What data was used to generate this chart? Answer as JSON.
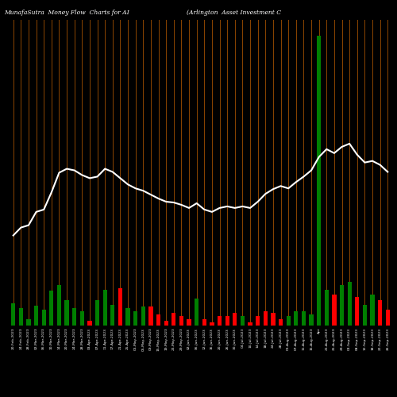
{
  "title_left": "MunafaSutra  Money Flow  Charts for AI",
  "title_right": "(Arlington  Asset Investment C",
  "background_color": "#000000",
  "grid_color": "#8B4500",
  "bar_colors": [
    "green",
    "green",
    "green",
    "green",
    "green",
    "green",
    "green",
    "green",
    "green",
    "green",
    "red",
    "green",
    "green",
    "green",
    "red",
    "green",
    "green",
    "green",
    "red",
    "red",
    "red",
    "red",
    "red",
    "red",
    "green",
    "red",
    "red",
    "red",
    "red",
    "red",
    "green",
    "red",
    "red",
    "red",
    "red",
    "red",
    "green",
    "green",
    "green",
    "green",
    "green",
    "green",
    "red",
    "green",
    "green",
    "red",
    "green",
    "green",
    "red",
    "red"
  ],
  "bar_heights": [
    28,
    22,
    8,
    25,
    20,
    45,
    52,
    32,
    22,
    18,
    6,
    32,
    46,
    26,
    48,
    22,
    18,
    24,
    24,
    14,
    6,
    16,
    12,
    8,
    34,
    8,
    4,
    12,
    12,
    16,
    12,
    4,
    12,
    18,
    16,
    8,
    12,
    18,
    18,
    14,
    370,
    46,
    40,
    52,
    56,
    36,
    26,
    40,
    32,
    20
  ],
  "line_values": [
    115,
    125,
    128,
    145,
    148,
    170,
    195,
    200,
    198,
    192,
    188,
    190,
    200,
    196,
    188,
    180,
    175,
    172,
    167,
    162,
    158,
    157,
    154,
    150,
    156,
    148,
    145,
    150,
    152,
    150,
    152,
    150,
    158,
    168,
    174,
    178,
    175,
    183,
    190,
    198,
    215,
    225,
    220,
    228,
    232,
    218,
    208,
    210,
    205,
    196
  ],
  "labels": [
    "20-Feb-2023",
    "24-Feb-2023",
    "28-Feb-2023",
    "02-Mar-2023",
    "06-Mar-2023",
    "10-Mar-2023",
    "14-Mar-2023",
    "20-Mar-2023",
    "24-Mar-2023",
    "28-Mar-2023",
    "03-Apr-2023",
    "07-Apr-2023",
    "11-Apr-2023",
    "17-Apr-2023",
    "21-Apr-2023",
    "25-Apr-2023",
    "01-May-2023",
    "05-May-2023",
    "09-May-2023",
    "15-May-2023",
    "19-May-2023",
    "23-May-2023",
    "29-May-2023",
    "02-Jun-2023",
    "06-Jun-2023",
    "12-Jun-2023",
    "16-Jun-2023",
    "20-Jun-2023",
    "26-Jun-2023",
    "30-Jun-2023",
    "04-Jul-2023",
    "10-Jul-2023",
    "14-Jul-2023",
    "18-Jul-2023",
    "24-Jul-2023",
    "28-Jul-2023",
    "01-Aug-2023",
    "07-Aug-2023",
    "11-Aug-2023",
    "15-Aug-2023",
    "Apr",
    "21-Aug-2023",
    "25-Aug-2023",
    "29-Aug-2023",
    "04-Sep-2023",
    "08-Sep-2023",
    "12-Sep-2023",
    "18-Sep-2023",
    "22-Sep-2023",
    "26-Sep-2023"
  ],
  "line_color": "#ffffff",
  "line_width": 1.5,
  "figsize": [
    5.0,
    5.0
  ],
  "dpi": 100,
  "ylim_max": 390
}
